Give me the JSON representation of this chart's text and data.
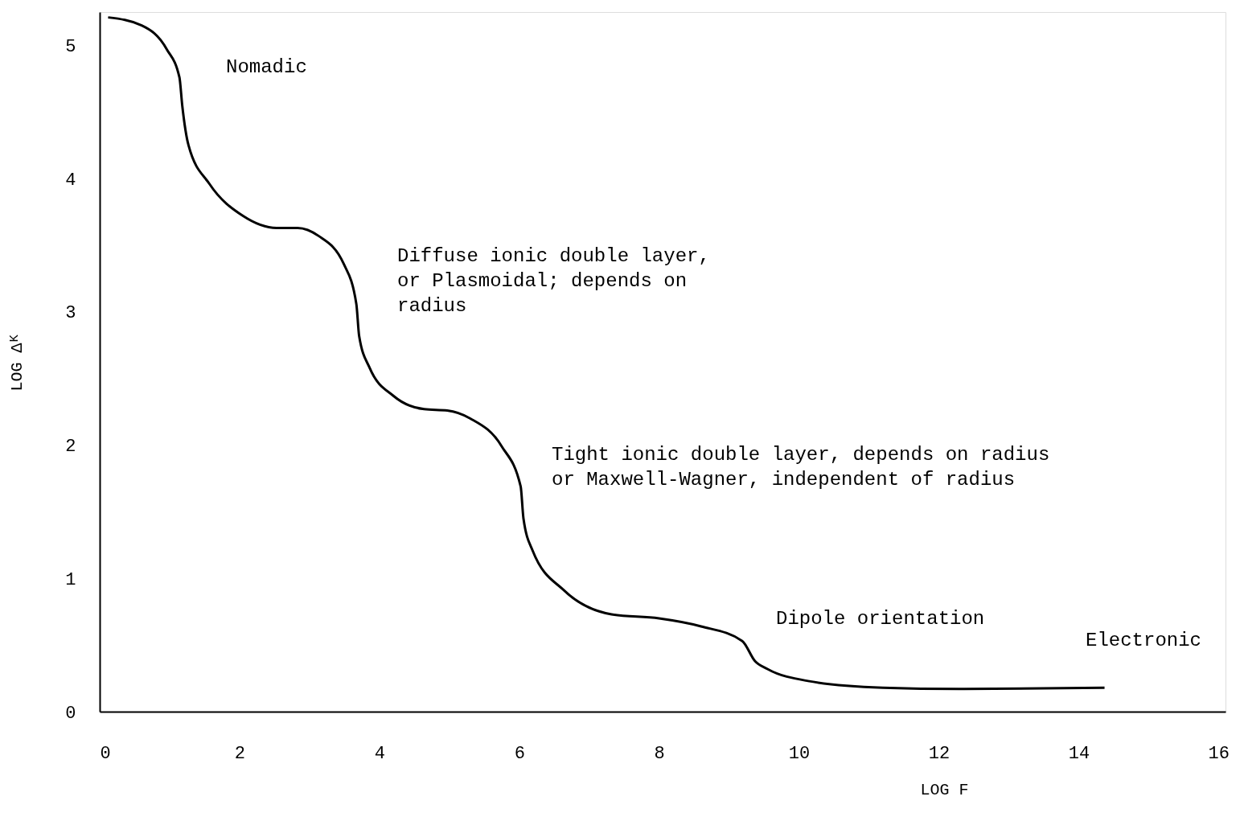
{
  "chart_data": {
    "type": "line",
    "xlabel": "LOG F",
    "ylabel": "LOG Δᴷ",
    "x": [
      0.12,
      0.6,
      0.96,
      1.14,
      1.18,
      1.27,
      1.57,
      2.05,
      2.53,
      2.83,
      3.13,
      3.49,
      3.67,
      3.71,
      3.86,
      4.2,
      4.64,
      4.97,
      5.3,
      5.75,
      6.02,
      6.06,
      6.19,
      6.64,
      7.32,
      8.0,
      8.6,
      9.19,
      9.37,
      9.55,
      10.13,
      11.2,
      12.29,
      14.37
    ],
    "series": [
      {
        "color": "#000000",
        "values": [
          5.21,
          5.15,
          4.97,
          4.76,
          4.55,
          4.25,
          3.96,
          3.72,
          3.63,
          3.63,
          3.57,
          3.36,
          3.06,
          2.82,
          2.58,
          2.37,
          2.27,
          2.26,
          2.2,
          1.99,
          1.69,
          1.45,
          1.21,
          0.91,
          0.73,
          0.7,
          0.64,
          0.53,
          0.38,
          0.32,
          0.23,
          0.18,
          0.17,
          0.18
        ]
      }
    ],
    "xlim": [
      0,
      16.1
    ],
    "ylim": [
      0,
      5.25
    ],
    "xticks": [
      0,
      2,
      4,
      6,
      8,
      10,
      12,
      14,
      16
    ],
    "yticks": [
      0,
      1,
      2,
      3,
      4,
      5
    ],
    "grid": false,
    "legend": false,
    "marker": "none",
    "line_style": "solid",
    "annotations": [
      "Nomadic",
      "Diffuse ionic double layer,\nor Plasmoidal; depends on\nradius",
      "Tight ionic double layer, depends on radius\nor Maxwell-Wagner, independent of radius",
      "Dipole orientation",
      "Electronic"
    ]
  }
}
